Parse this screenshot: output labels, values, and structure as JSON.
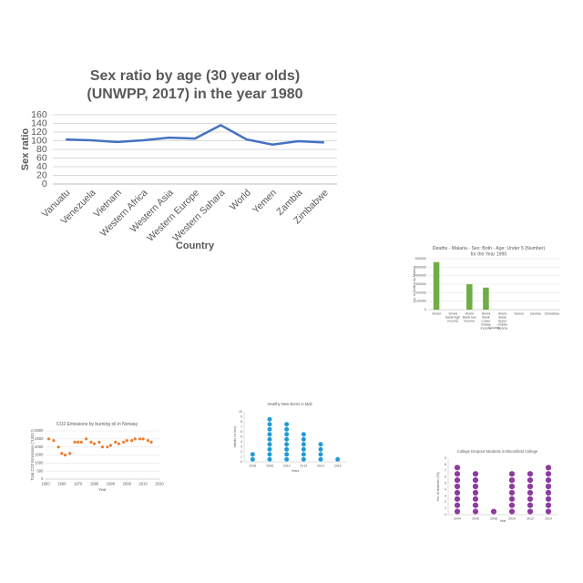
{
  "chart_data": [
    {
      "type": "line",
      "title": "Sex ratio by age (30 year olds) (UNWPP, 2017) in the year 1980",
      "x_label": "Country",
      "y_label": "Sex ratio",
      "categories": [
        "Vanuatu",
        "Venezuela",
        "Vietnam",
        "Western Africa",
        "Western Asia",
        "Western Europe",
        "Western Sahara",
        "World",
        "Yemen",
        "Zambia",
        "Zimbabwe"
      ],
      "values": [
        103,
        101,
        97,
        101,
        107,
        105,
        136,
        103,
        91,
        99,
        96
      ],
      "color": "#4472c4",
      "ylim": [
        0,
        160
      ],
      "yticks": [
        0,
        20,
        40,
        60,
        80,
        100,
        120,
        140,
        160
      ],
      "grid": true
    },
    {
      "type": "bar",
      "title": "Deaths - Malaria - Sex: Both - Age: Under 5 (Number) for the Year 1990",
      "x_label": "Country",
      "y_label": "No. of Deaths by Malaria",
      "categories": [
        "World",
        "World Bank high income",
        "World Bank low income",
        "World Bank Lower middle income",
        "World Bank Upper middle income",
        "Yemen",
        "Zambia",
        "Zimbabwe"
      ],
      "values": [
        560000,
        0,
        300000,
        260000,
        0,
        0,
        0,
        0
      ],
      "color": "#70ad47",
      "ylim": [
        0,
        600000
      ],
      "yticks": [
        0,
        100000,
        200000,
        300000,
        400000,
        500000,
        600000
      ],
      "grid": true
    },
    {
      "type": "scatter",
      "title": "CO2 Emissions by burning oil in Norway",
      "x_label": "Year",
      "y_label": "Total CO2 Emissions (*1000 t)",
      "x": [
        1952,
        1955,
        1958,
        1960,
        1962,
        1965,
        1968,
        1970,
        1972,
        1975,
        1978,
        1980,
        1983,
        1985,
        1988,
        1990,
        1993,
        1995,
        1998,
        2000,
        2003,
        2005,
        2008,
        2010,
        2013,
        2015
      ],
      "values": [
        2500,
        2400,
        2000,
        1600,
        1500,
        1600,
        2300,
        2300,
        2300,
        2500,
        2300,
        2200,
        2300,
        2000,
        2000,
        2100,
        2300,
        2200,
        2300,
        2400,
        2400,
        2500,
        2500,
        2500,
        2400,
        2300
      ],
      "color": "#ed7d31",
      "xlim": [
        1950,
        2020
      ],
      "xticks": [
        1950,
        1960,
        1970,
        1980,
        1990,
        2000,
        2010,
        2020
      ],
      "ylim": [
        0,
        3000
      ],
      "yticks": [
        0,
        500,
        1000,
        1500,
        2000,
        2500,
        3000
      ],
      "grid": true
    },
    {
      "type": "dot",
      "title": "Healthy New Borns in Mali",
      "x_label": "Years",
      "y_label": "Infants (in lacs)",
      "categories": [
        "2006",
        "2008",
        "2010",
        "2012",
        "2014",
        "2016"
      ],
      "values": [
        2,
        9,
        8,
        6,
        4,
        1
      ],
      "color": "#1f9bd7",
      "ylim": [
        0,
        10
      ],
      "yticks": [
        0,
        1,
        2,
        3,
        4,
        5,
        6,
        7,
        8,
        9,
        10
      ],
      "grid": false
    },
    {
      "type": "dot",
      "title": "College Dropout Students in Bloomfield College",
      "x_label": "Year",
      "y_label": "No. of students ('00)",
      "categories": [
        "2004",
        "2006",
        "2008",
        "2010",
        "2012",
        "2014"
      ],
      "values": [
        8,
        7,
        1,
        7,
        7,
        8
      ],
      "color": "#8e3a9e",
      "ylim": [
        0,
        9
      ],
      "yticks": [
        0,
        1,
        2,
        3,
        4,
        5,
        6,
        7,
        8,
        9
      ],
      "grid": false
    }
  ]
}
